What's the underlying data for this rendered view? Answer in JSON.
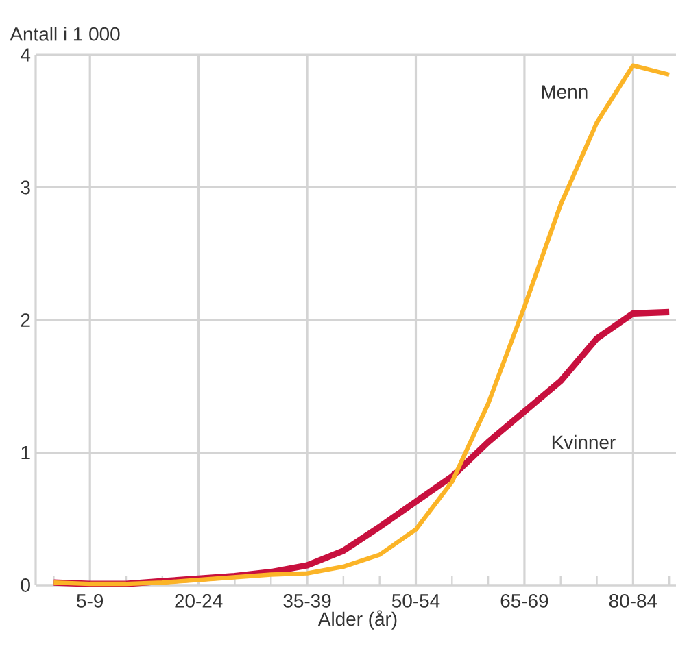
{
  "chart_data": {
    "type": "line",
    "ylabel": "Antall i 1 000",
    "xlabel": "Alder (år)",
    "categories": [
      null,
      "5-9",
      null,
      null,
      "20-24",
      null,
      null,
      "35-39",
      null,
      null,
      "50-54",
      null,
      null,
      "65-69",
      null,
      null,
      "80-84",
      null
    ],
    "series": [
      {
        "name": "Kvinner",
        "color": "#c8103e",
        "values": [
          0.02,
          0.01,
          0.01,
          0.03,
          0.05,
          0.07,
          0.1,
          0.15,
          0.26,
          0.44,
          0.63,
          0.82,
          1.08,
          1.31,
          1.54,
          1.86,
          2.05,
          2.06
        ]
      },
      {
        "name": "Menn",
        "color": "#fbb427",
        "values": [
          0.02,
          0.01,
          0.01,
          0.02,
          0.04,
          0.06,
          0.08,
          0.09,
          0.14,
          0.23,
          0.42,
          0.78,
          1.37,
          2.1,
          2.87,
          3.49,
          3.92,
          3.85
        ]
      }
    ],
    "ylim": [
      0,
      4
    ],
    "yticks": [
      0,
      1,
      2,
      3,
      4
    ],
    "grid": true,
    "legend": false,
    "marker": "none",
    "line_style": "solid"
  }
}
